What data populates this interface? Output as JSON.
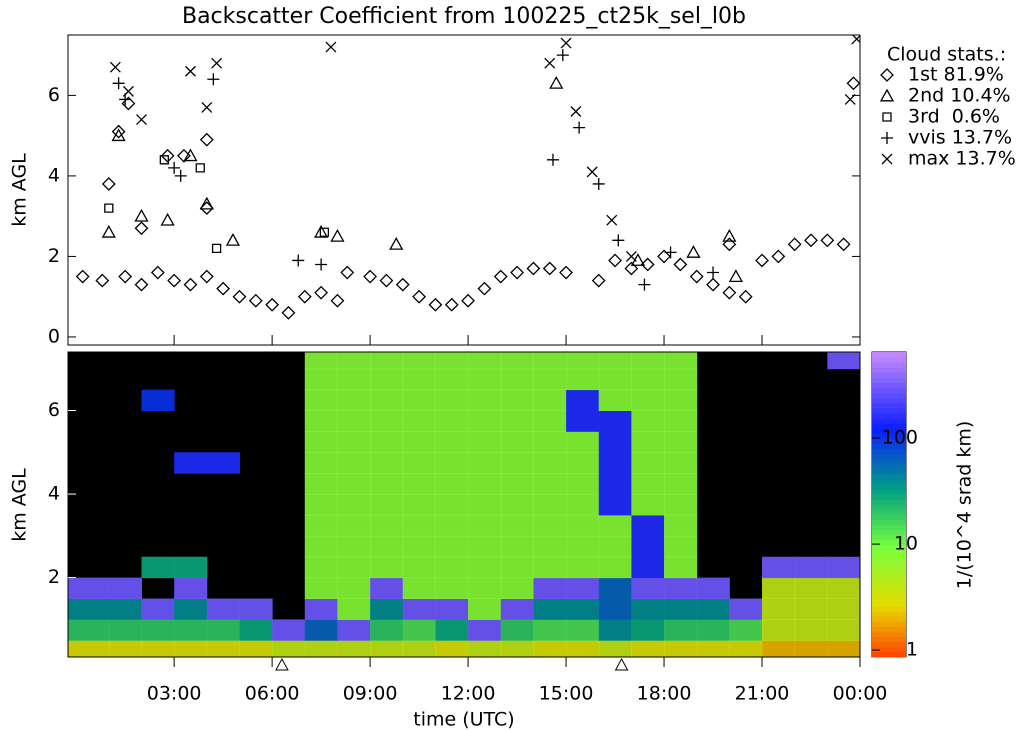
{
  "chart_data": [
    {
      "type": "scatter",
      "title": "Backscatter Coefficient from 100225_ct25k_sel_l0b",
      "y_label": "km AGL",
      "legend_title": "Cloud stats.:",
      "legend": "right",
      "xlim": [
        -0.25,
        24
      ],
      "ylim": [
        -0.2,
        7.5
      ],
      "yticks": [
        0,
        2,
        4,
        6
      ],
      "series": [
        {
          "name": "1st 81.9%",
          "marker": "diamond",
          "color": "#000000",
          "x": [
            0.2,
            0.8,
            1.5,
            2,
            2.5,
            3,
            3.5,
            4,
            4.5,
            5,
            5.5,
            6,
            6.5,
            7,
            7.5,
            8,
            8.3,
            9,
            9.5,
            10,
            10.5,
            11,
            11.5,
            12,
            12.5,
            13,
            13.5,
            14,
            14.5,
            15,
            1.3,
            1.6,
            2.8,
            3.3,
            4,
            1,
            2,
            4,
            16,
            16.5,
            17,
            17.5,
            18,
            18.5,
            19,
            19.5,
            20,
            20.5,
            20,
            21,
            21.5,
            22,
            22.5,
            23,
            23.5,
            23.8
          ],
          "values": [
            1.5,
            1.4,
            1.5,
            1.3,
            1.6,
            1.4,
            1.3,
            1.5,
            1.2,
            1.0,
            0.9,
            0.8,
            0.6,
            1.0,
            1.1,
            0.9,
            1.6,
            1.5,
            1.4,
            1.3,
            1.0,
            0.8,
            0.8,
            0.9,
            1.2,
            1.5,
            1.6,
            1.7,
            1.7,
            1.6,
            5.1,
            5.8,
            4.5,
            4.5,
            4.9,
            3.8,
            2.7,
            3.2,
            1.4,
            1.9,
            1.7,
            1.8,
            2.0,
            1.8,
            1.5,
            1.3,
            1.1,
            1.0,
            2.3,
            1.9,
            2.0,
            2.3,
            2.4,
            2.4,
            2.3,
            6.3
          ]
        },
        {
          "name": "2nd 10.4%",
          "marker": "triangle",
          "color": "#000000",
          "x": [
            1.0,
            1.3,
            2.0,
            2.8,
            3.5,
            4.0,
            4.8,
            7.5,
            8.0,
            9.8,
            14.7,
            17.2,
            18.9,
            20.0,
            20.2
          ],
          "values": [
            2.6,
            5.0,
            3.0,
            2.9,
            4.5,
            3.3,
            2.4,
            2.6,
            2.5,
            2.3,
            6.3,
            1.9,
            2.1,
            2.5,
            1.5
          ]
        },
        {
          "name": "3rd  0.6%",
          "marker": "square",
          "color": "#000000",
          "x": [
            1.0,
            2.7,
            3.8,
            4.3,
            7.6
          ],
          "values": [
            3.2,
            4.4,
            4.2,
            2.2,
            2.6
          ]
        },
        {
          "name": "vvis 13.7%",
          "marker": "plus",
          "color": "#000000",
          "x": [
            1.3,
            1.5,
            3.0,
            3.2,
            4.2,
            6.8,
            7.5,
            14.6,
            14.9,
            15.4,
            16.0,
            16.6,
            17.4,
            18.2,
            19.5
          ],
          "values": [
            6.3,
            5.9,
            4.2,
            4.0,
            6.4,
            1.9,
            1.8,
            4.4,
            7.0,
            5.2,
            3.8,
            2.4,
            1.3,
            2.1,
            1.6
          ]
        },
        {
          "name": "max 13.7%",
          "marker": "cross",
          "color": "#000000",
          "x": [
            1.2,
            1.6,
            2.0,
            3.5,
            4.0,
            4.3,
            7.8,
            14.5,
            15.0,
            15.3,
            15.8,
            16.4,
            17.0,
            23.9,
            23.7
          ],
          "values": [
            6.7,
            6.1,
            5.4,
            6.6,
            5.7,
            6.8,
            7.2,
            6.8,
            7.3,
            5.6,
            4.1,
            2.9,
            2.0,
            7.4,
            5.9
          ]
        }
      ]
    },
    {
      "type": "heatmap",
      "x_label": "time (UTC)",
      "y_label": "km AGL",
      "colorbar_label": "1/(10^4 srad km)",
      "xlim": [
        -0.25,
        24
      ],
      "ylim": [
        0.1,
        7.4
      ],
      "yticks": [
        2,
        4,
        6
      ],
      "xticks": [
        {
          "value": 3,
          "label": "03:00"
        },
        {
          "value": 6,
          "label": "06:00"
        },
        {
          "value": 9,
          "label": "09:00"
        },
        {
          "value": 12,
          "label": "12:00"
        },
        {
          "value": 15,
          "label": "15:00"
        },
        {
          "value": 18,
          "label": "18:00"
        },
        {
          "value": 21,
          "label": "21:00"
        },
        {
          "value": 24,
          "label": "00:00"
        }
      ],
      "clim": [
        0.86,
        650
      ],
      "cticks": [
        1,
        10,
        100
      ],
      "log_color": true,
      "event_markers_x": [
        6.3,
        16.7
      ],
      "x_edges": [
        -0.25,
        1,
        2,
        3,
        4,
        5,
        6,
        7,
        8,
        9,
        10,
        11,
        12,
        13,
        14,
        15,
        16,
        17,
        18,
        19,
        20,
        21,
        22,
        23,
        24
      ],
      "y_edges": [
        0,
        0.5,
        1,
        1.5,
        2,
        2.5,
        3,
        3.5,
        4,
        4.5,
        5,
        5.5,
        6,
        6.5,
        7,
        7.5
      ],
      "z": [
        [
          3,
          3,
          3,
          3,
          3,
          3,
          4,
          4,
          4,
          4,
          4,
          3,
          4,
          4,
          3,
          3,
          4,
          3,
          3,
          3,
          3,
          2,
          2,
          2
        ],
        [
          20,
          20,
          20,
          20,
          20,
          30,
          300,
          60,
          300,
          20,
          15,
          30,
          300,
          20,
          15,
          15,
          40,
          30,
          20,
          20,
          15,
          4,
          4,
          4
        ],
        [
          40,
          40,
          300,
          40,
          300,
          300,
          null,
          300,
          8,
          40,
          300,
          300,
          8,
          300,
          40,
          40,
          60,
          40,
          40,
          40,
          300,
          4,
          4,
          4
        ],
        [
          300,
          300,
          null,
          300,
          null,
          null,
          null,
          8,
          8,
          300,
          8,
          8,
          8,
          8,
          300,
          300,
          60,
          300,
          300,
          300,
          null,
          4,
          4,
          4
        ],
        [
          null,
          null,
          30,
          30,
          null,
          null,
          null,
          8,
          8,
          8,
          8,
          8,
          8,
          8,
          8,
          8,
          8,
          150,
          8,
          null,
          null,
          300,
          300,
          300
        ],
        [
          null,
          null,
          null,
          null,
          null,
          null,
          null,
          8,
          8,
          8,
          8,
          8,
          8,
          8,
          8,
          8,
          8,
          150,
          8,
          null,
          null,
          null,
          null,
          null
        ],
        [
          null,
          null,
          null,
          null,
          null,
          null,
          null,
          8,
          8,
          8,
          8,
          8,
          8,
          8,
          8,
          8,
          8,
          150,
          8,
          null,
          null,
          null,
          null,
          null
        ],
        [
          null,
          null,
          null,
          null,
          null,
          null,
          null,
          8,
          8,
          8,
          8,
          8,
          8,
          8,
          8,
          8,
          150,
          8,
          8,
          null,
          null,
          null,
          null,
          null
        ],
        [
          null,
          null,
          null,
          null,
          null,
          null,
          null,
          8,
          8,
          8,
          8,
          8,
          8,
          8,
          8,
          8,
          150,
          8,
          8,
          null,
          null,
          null,
          null,
          null
        ],
        [
          null,
          null,
          null,
          150,
          150,
          null,
          null,
          8,
          8,
          8,
          8,
          8,
          8,
          8,
          8,
          8,
          150,
          8,
          8,
          null,
          null,
          null,
          null,
          null
        ],
        [
          null,
          null,
          null,
          null,
          null,
          null,
          null,
          8,
          8,
          8,
          8,
          8,
          8,
          8,
          8,
          8,
          150,
          8,
          8,
          null,
          null,
          null,
          null,
          null
        ],
        [
          null,
          null,
          null,
          null,
          null,
          null,
          null,
          8,
          8,
          8,
          8,
          8,
          8,
          8,
          8,
          150,
          150,
          8,
          8,
          null,
          null,
          null,
          null,
          null
        ],
        [
          null,
          null,
          100,
          null,
          null,
          null,
          null,
          8,
          8,
          8,
          8,
          8,
          8,
          8,
          8,
          150,
          8,
          8,
          8,
          null,
          null,
          null,
          null,
          null
        ],
        [
          null,
          null,
          null,
          null,
          null,
          null,
          null,
          8,
          8,
          8,
          8,
          8,
          8,
          8,
          8,
          8,
          8,
          8,
          8,
          null,
          null,
          null,
          null,
          null
        ],
        [
          null,
          null,
          null,
          null,
          null,
          null,
          null,
          8,
          8,
          8,
          8,
          8,
          8,
          8,
          8,
          8,
          8,
          8,
          8,
          null,
          null,
          null,
          null,
          300
        ]
      ]
    }
  ]
}
